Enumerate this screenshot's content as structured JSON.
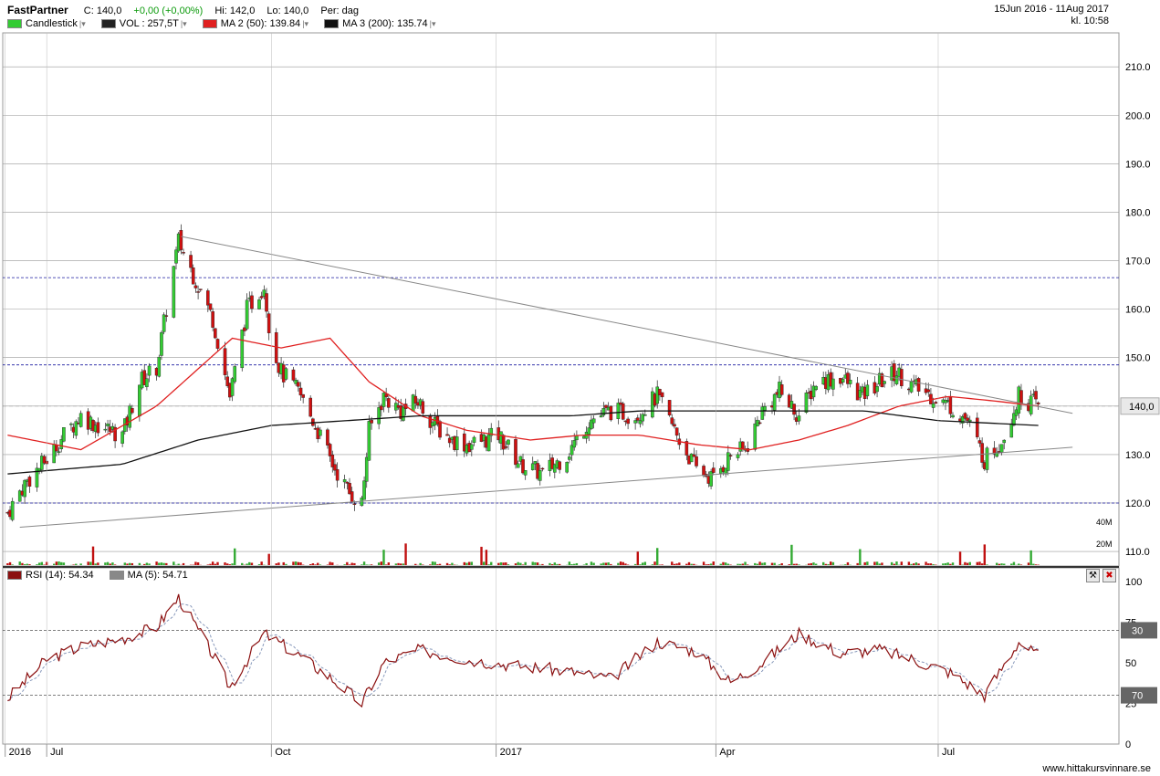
{
  "header": {
    "ticker": "FastPartner",
    "close": "C: 140,0",
    "change": "+0,00 (+0,00%)",
    "high": "Hi: 142,0",
    "low": "Lo: 140,0",
    "period": "Per: dag",
    "date_range": "15Jun 2016 - 11Aug 2017",
    "time": "kl. 10:58",
    "legend": [
      {
        "label": "Candlestick",
        "color": "#33cc33"
      },
      {
        "label": "VOL : 257,5T",
        "color": "#222222"
      },
      {
        "label": "MA 2 (50): 139.84",
        "color": "#e02020"
      },
      {
        "label": "MA 3 (200): 135.74",
        "color": "#111111"
      }
    ]
  },
  "price_panel": {
    "y_ticks": [
      "210.0",
      "200.0",
      "190.0",
      "180.0",
      "170.0",
      "160.0",
      "150.0",
      "140.0",
      "130.0",
      "120.0",
      "110.0"
    ],
    "current_price_label": "140,0",
    "volume_ticks": [
      "40M",
      "20M"
    ]
  },
  "rsi_panel": {
    "legend": [
      {
        "label": "RSI (14): 54.34",
        "color": "#8b1010"
      },
      {
        "label": "MA (5): 54.71",
        "color": "#888888"
      }
    ],
    "y_ticks": [
      "100",
      "75",
      "50",
      "25",
      "0"
    ],
    "levels": [
      "70",
      "30"
    ]
  },
  "x_axis": [
    "2016",
    "Jul",
    "Oct",
    "2017",
    "Apr",
    "Jul"
  ],
  "footer": "www.hittakursvinnare.se",
  "chart_data": {
    "type": "line",
    "title": "FastPartner",
    "series": [
      {
        "name": "Close",
        "color": "#33cc33",
        "x": [
          "2016-06-15",
          "2016-06-22",
          "2016-07-01",
          "2016-07-08",
          "2016-07-15",
          "2016-07-22",
          "2016-08-01",
          "2016-08-08",
          "2016-08-15",
          "2016-08-19",
          "2016-08-24",
          "2016-08-31",
          "2016-09-07",
          "2016-09-14",
          "2016-09-21",
          "2016-09-28",
          "2016-10-01",
          "2016-10-05",
          "2016-10-12",
          "2016-10-19",
          "2016-10-26",
          "2016-11-02",
          "2016-11-07",
          "2016-11-10",
          "2016-11-16",
          "2016-11-23",
          "2016-11-30",
          "2016-12-07",
          "2016-12-14",
          "2016-12-21",
          "2017-01-02",
          "2017-01-11",
          "2017-01-20",
          "2017-01-30",
          "2017-02-08",
          "2017-02-17",
          "2017-02-27",
          "2017-03-08",
          "2017-03-17",
          "2017-03-24",
          "2017-03-31",
          "2017-04-07",
          "2017-04-13",
          "2017-04-20",
          "2017-04-27",
          "2017-05-05",
          "2017-05-12",
          "2017-05-22",
          "2017-05-31",
          "2017-06-07",
          "2017-06-14",
          "2017-06-21",
          "2017-06-29",
          "2017-07-06",
          "2017-07-13",
          "2017-07-20",
          "2017-07-27",
          "2017-08-03",
          "2017-08-11"
        ],
        "values": [
          118,
          124,
          129,
          134,
          138,
          136,
          134,
          145,
          148,
          160,
          174,
          166,
          158,
          142,
          160,
          165,
          153,
          147,
          143,
          136,
          128,
          122,
          120,
          135,
          142,
          139,
          141,
          136,
          133,
          132,
          134,
          128,
          126,
          130,
          137,
          139,
          138,
          142,
          133,
          127,
          125,
          130,
          131,
          139,
          143,
          138,
          145,
          146,
          142,
          145,
          147,
          144,
          142,
          140,
          137,
          129,
          133,
          142,
          140
        ]
      },
      {
        "name": "MA 2 (50)",
        "color": "#e02020",
        "x": [
          "2016-06-15",
          "2016-07-15",
          "2016-08-15",
          "2016-09-15",
          "2016-10-05",
          "2016-10-25",
          "2016-11-10",
          "2016-12-01",
          "2016-12-20",
          "2017-01-15",
          "2017-02-05",
          "2017-03-01",
          "2017-03-25",
          "2017-04-15",
          "2017-05-05",
          "2017-05-25",
          "2017-06-15",
          "2017-07-05",
          "2017-07-25",
          "2017-08-11"
        ],
        "values": [
          134,
          131,
          140,
          154,
          152,
          154,
          145,
          138,
          135,
          133,
          134,
          134,
          132,
          131,
          133,
          136,
          140,
          142,
          141,
          140
        ]
      },
      {
        "name": "MA 3 (200)",
        "color": "#111111",
        "x": [
          "2016-06-15",
          "2016-08-01",
          "2016-09-01",
          "2016-10-01",
          "2016-11-01",
          "2016-12-01",
          "2017-01-01",
          "2017-02-01",
          "2017-03-01",
          "2017-04-01",
          "2017-05-01",
          "2017-06-01",
          "2017-07-01",
          "2017-08-11"
        ],
        "values": [
          126,
          128,
          133,
          136,
          137,
          138,
          138,
          138,
          139,
          139,
          139,
          139,
          137,
          136
        ]
      }
    ],
    "rsi": {
      "rsi14_final": 54.34,
      "ma5_final": 54.71,
      "x": [
        "2016-06-15",
        "2016-07-01",
        "2016-07-15",
        "2016-08-01",
        "2016-08-15",
        "2016-08-24",
        "2016-09-07",
        "2016-09-14",
        "2016-09-28",
        "2016-10-12",
        "2016-10-26",
        "2016-11-07",
        "2016-11-16",
        "2016-12-01",
        "2016-12-20",
        "2017-01-11",
        "2017-01-30",
        "2017-02-17",
        "2017-03-08",
        "2017-03-24",
        "2017-04-07",
        "2017-04-20",
        "2017-05-05",
        "2017-05-22",
        "2017-06-07",
        "2017-06-21",
        "2017-07-06",
        "2017-07-20",
        "2017-08-03",
        "2017-08-11"
      ],
      "values": [
        28,
        52,
        60,
        65,
        72,
        90,
        55,
        35,
        68,
        55,
        40,
        25,
        50,
        58,
        52,
        48,
        45,
        40,
        63,
        57,
        38,
        50,
        68,
        56,
        58,
        52,
        44,
        30,
        63,
        54
      ],
      "ylim": [
        0,
        100
      ],
      "levels": [
        30,
        70
      ]
    },
    "ylim": [
      107,
      217
    ],
    "volume_ylim": [
      0,
      50
    ],
    "trendlines": [
      {
        "from": [
          "2016-08-25",
          175
        ],
        "to": [
          "2017-08-25",
          138.5
        ]
      },
      {
        "from": [
          "2016-06-20",
          115
        ],
        "to": [
          "2017-08-25",
          131.5
        ]
      }
    ],
    "horizontal_levels": [
      166.5,
      148.5,
      120
    ]
  }
}
